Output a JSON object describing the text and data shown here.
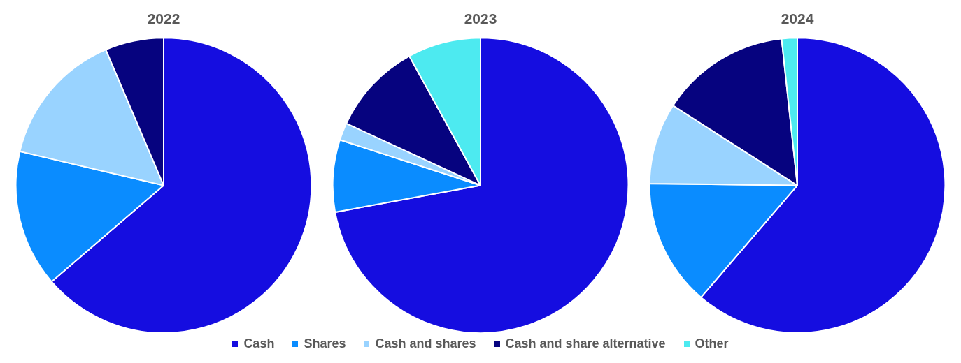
{
  "chart_data": [
    {
      "type": "pie",
      "title": "2022",
      "categories": [
        "Cash",
        "Shares",
        "Cash and shares",
        "Cash and share alternative",
        "Other"
      ],
      "values": [
        63.7,
        15.0,
        14.9,
        6.4,
        0
      ],
      "colors": [
        "#150de0",
        "#0a8cff",
        "#99d3ff",
        "#06037f",
        "#4deaf0"
      ],
      "legend": "bottom"
    },
    {
      "type": "pie",
      "title": "2023",
      "categories": [
        null,
        null,
        null,
        null,
        null
      ],
      "values": [
        72.1,
        7.9,
        1.9,
        10.1,
        8.0
      ],
      "colors": [
        "#150de0",
        "#0a8cff",
        "#99d3ff",
        "#06037f",
        "#4deaf0"
      ]
    },
    {
      "type": "pie",
      "title": "2024",
      "categories": [
        null,
        null,
        null,
        null,
        null
      ],
      "values": [
        61.3,
        13.9,
        8.9,
        14.2,
        1.7
      ],
      "colors": [
        "#150de0",
        "#0a8cff",
        "#99d3ff",
        "#06037f",
        "#4deaf0"
      ]
    }
  ]
}
